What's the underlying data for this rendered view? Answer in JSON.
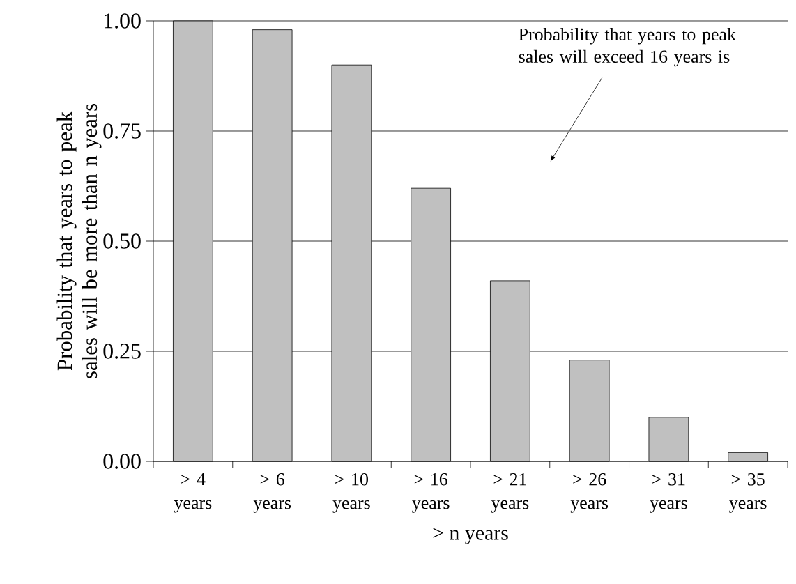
{
  "chart_data": {
    "type": "bar",
    "xlabel": "> n years",
    "ylabel": "Probability that years to peak sales will be more than n years",
    "categories": [
      "> 4 years",
      "> 6 years",
      "> 10 years",
      "> 16 years",
      "> 21 years",
      "> 26 years",
      "> 31 years",
      "> 35 years"
    ],
    "values": [
      1.0,
      0.98,
      0.9,
      0.62,
      0.41,
      0.23,
      0.1,
      0.02
    ],
    "color": "#c0c0c0",
    "ylim": [
      0,
      1
    ],
    "yticks": [
      {
        "value": 0,
        "label": "0.00"
      },
      {
        "value": 0.25,
        "label": "0.25"
      },
      {
        "value": 0.5,
        "label": "0.50"
      },
      {
        "value": 0.75,
        "label": "0.75"
      },
      {
        "value": 1,
        "label": "1.00"
      }
    ],
    "grid": "y",
    "annotations": [
      "Probability that years to peak sales will exceed 16 years is"
    ]
  }
}
